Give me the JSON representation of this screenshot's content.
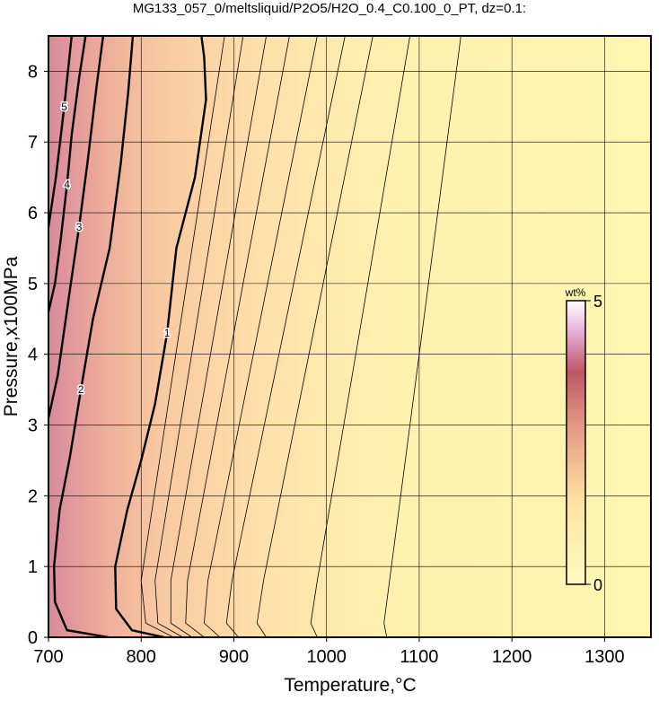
{
  "chart_data": {
    "type": "contour",
    "title": "MG133_057_0/meltsliquid/P2O5/H2O_0.4_C0.100_0_PT, dz=0.1:",
    "x_label": "Temperature,°C",
    "y_label": "Pressure,x100MPa",
    "xlim": [
      700,
      1350
    ],
    "xticks": [
      700,
      800,
      900,
      1000,
      1100,
      1200,
      1300
    ],
    "ylim": [
      0,
      8.5
    ],
    "yticks": [
      0,
      1,
      2,
      3,
      4,
      5,
      6,
      7,
      8
    ],
    "grid": true,
    "contours": [
      {
        "level": 5,
        "x": [
          700,
          708,
          717,
          725
        ],
        "y": [
          5.8,
          6.5,
          7.5,
          8.5
        ]
      },
      {
        "level": 4,
        "x": [
          700,
          707,
          713,
          720,
          725,
          733,
          740
        ],
        "y": [
          4.6,
          5,
          5.6,
          6.4,
          7.1,
          7.9,
          8.5
        ]
      },
      {
        "level": 3,
        "x": [
          700,
          710,
          723,
          733,
          742,
          752,
          759
        ],
        "y": [
          3.1,
          3.7,
          4.9,
          5.8,
          6.7,
          7.8,
          8.5
        ]
      },
      {
        "level": 2,
        "x": [
          765,
          720,
          707,
          706,
          712,
          723,
          735,
          748,
          766,
          778,
          786,
          791
        ],
        "y": [
          0,
          0.1,
          0.5,
          1,
          1.8,
          2.54,
          3.5,
          4.5,
          5.5,
          6.7,
          7.7,
          8.5
        ]
      },
      {
        "level": 1,
        "x": [
          825,
          790,
          773,
          772,
          785,
          800,
          815,
          828,
          838,
          850,
          858,
          870,
          868,
          865
        ],
        "y": [
          0,
          0.1,
          0.4,
          1,
          1.8,
          2.5,
          3.3,
          4.3,
          5.5,
          6.1,
          6.5,
          7.6,
          8.2,
          8.5
        ]
      },
      {
        "level": 0.9,
        "x": [
          835,
          805,
          800,
          890
        ],
        "y": [
          0,
          0.2,
          0.8,
          8.5
        ]
      },
      {
        "level": 0.8,
        "x": [
          845,
          818,
          815,
          910
        ],
        "y": [
          0,
          0.2,
          0.8,
          8.5
        ]
      },
      {
        "level": 0.7,
        "x": [
          855,
          832,
          832,
          935
        ],
        "y": [
          0,
          0.2,
          0.8,
          8.5
        ]
      },
      {
        "level": 0.6,
        "x": [
          868,
          848,
          850,
          960
        ],
        "y": [
          0,
          0.2,
          0.8,
          8.5
        ]
      },
      {
        "level": 0.5,
        "x": [
          885,
          868,
          872,
          990
        ],
        "y": [
          0,
          0.2,
          0.8,
          8.5
        ]
      },
      {
        "level": 0.4,
        "x": [
          905,
          892,
          898,
          1020
        ],
        "y": [
          0,
          0.2,
          0.8,
          8.5
        ]
      },
      {
        "level": 0.3,
        "x": [
          935,
          925,
          932,
          1050
        ],
        "y": [
          0,
          0.2,
          0.8,
          8.5
        ]
      },
      {
        "level": 0.2,
        "x": [
          990,
          983,
          990,
          1090
        ],
        "y": [
          0,
          0.2,
          0.8,
          8.5
        ]
      },
      {
        "level": 0.1,
        "x": [
          1065,
          1062,
          1068,
          1145
        ],
        "y": [
          0,
          0.2,
          0.8,
          8.5
        ]
      }
    ],
    "colorbar": {
      "label": "wt%",
      "lim": [
        0,
        5
      ],
      "ticks": [
        0,
        5
      ]
    }
  }
}
